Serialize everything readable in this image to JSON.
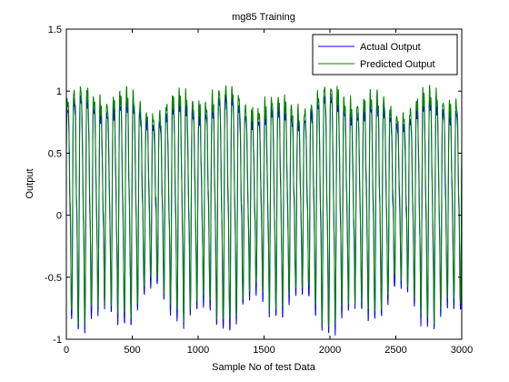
{
  "chart_data": {
    "type": "line",
    "title": "mg85 Training",
    "xlabel": "Sample No of test Data",
    "ylabel": "Output",
    "xlim": [
      0,
      3000
    ],
    "ylim": [
      -1,
      1.5
    ],
    "xticks": [
      0,
      500,
      1000,
      1500,
      2000,
      2500,
      3000
    ],
    "xtick_labels": [
      "0",
      "500",
      "1000",
      "1500",
      "2000",
      "2500",
      "3000"
    ],
    "yticks": [
      -1,
      -0.5,
      0,
      0.5,
      1,
      1.5
    ],
    "ytick_labels": [
      "-1",
      "-0.5",
      "0",
      "0.5",
      "1",
      "1.5"
    ],
    "grid": false,
    "legend_position": "top-right",
    "signal": {
      "num_samples": 3000,
      "period_samples": 50,
      "actual_amplitude_range": [
        -0.97,
        0.98
      ],
      "predicted_amplitude_range": [
        -0.9,
        1.05
      ]
    },
    "series": [
      {
        "name": "Actual Output",
        "color": "#0000ff"
      },
      {
        "name": "Predicted Output",
        "color": "#008000"
      }
    ]
  }
}
